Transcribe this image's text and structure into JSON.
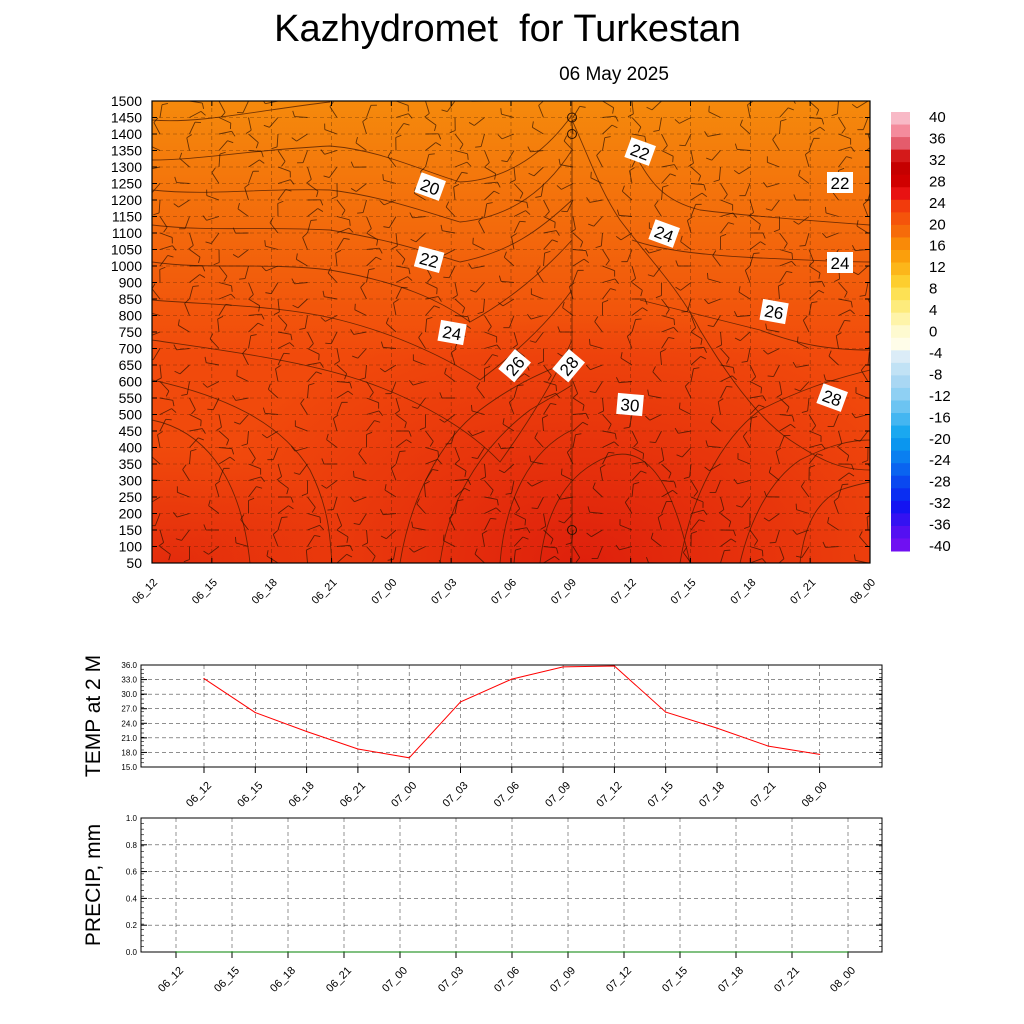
{
  "header": {
    "title": "Kazhydromet  for Turkestan",
    "date": "06 May 2025"
  },
  "colors": {
    "warm_top": "#f58a0c",
    "warm_mid": "#f14a0c",
    "warm_hot": "#d8120c",
    "temp_line": "#ff0000",
    "precip_line": "#008000"
  },
  "chart_data": [
    {
      "type": "heatmap",
      "title": "",
      "xlabel": "",
      "ylabel": "",
      "x_ticks": [
        "06_12",
        "06_15",
        "06_18",
        "06_21",
        "07_00",
        "07_03",
        "07_06",
        "07_09",
        "07_12",
        "07_15",
        "07_18",
        "07_21",
        "08_00"
      ],
      "y_ticks": [
        50,
        100,
        150,
        200,
        250,
        300,
        350,
        400,
        450,
        500,
        550,
        600,
        650,
        700,
        750,
        800,
        850,
        900,
        1000,
        1050,
        1100,
        1150,
        1200,
        1250,
        1300,
        1350,
        1400,
        1450,
        1500
      ],
      "colorbar": {
        "labels": [
          40,
          36,
          32,
          28,
          24,
          20,
          16,
          12,
          8,
          4,
          0,
          -4,
          -8,
          -12,
          -16,
          -20,
          -24,
          -28,
          -32,
          -36,
          -40
        ],
        "colors": [
          "#f8b9c6",
          "#f48b9c",
          "#e45c6c",
          "#d41a1a",
          "#c50000",
          "#d00000",
          "#e81212",
          "#f23b0c",
          "#f5540b",
          "#f66b0a",
          "#f98a08",
          "#fb9f0c",
          "#fcb61a",
          "#fdce2e",
          "#fde154",
          "#fdeb7c",
          "#fef4a9",
          "#fefad0",
          "#fffde9",
          "#dbecf7",
          "#c1e2f5",
          "#a9d7f3",
          "#8fd0f3",
          "#6cc4f2",
          "#44b6f1",
          "#1aa8f0",
          "#0a96ef",
          "#0a7ff0",
          "#0a64f0",
          "#0a48f0",
          "#0a2ef2",
          "#1414f2",
          "#3412f2",
          "#5410f2",
          "#7010f2"
        ]
      },
      "contour_labels": [
        "20",
        "22",
        "22",
        "22",
        "24",
        "24",
        "24",
        "26",
        "26",
        "28",
        "28",
        "30"
      ],
      "marked_levels": [
        "1450",
        "1400",
        "150"
      ]
    },
    {
      "type": "line",
      "title": "",
      "ylabel": "TEMP at 2 M",
      "x": [
        "06_12",
        "06_15",
        "06_18",
        "06_21",
        "07_00",
        "07_03",
        "07_06",
        "07_09",
        "07_12",
        "07_15",
        "07_18",
        "07_21",
        "08_00"
      ],
      "y_ticks": [
        "15.0",
        "18.0",
        "21.0",
        "24.0",
        "27.0",
        "30.0",
        "33.0",
        "36.0"
      ],
      "ylim": [
        15,
        36
      ],
      "grid": true,
      "series": [
        {
          "values": [
            33.2,
            26.2,
            22.3,
            18.7,
            16.9,
            28.4,
            33.1,
            35.6,
            35.8,
            26.3,
            23.0,
            19.3,
            17.6
          ]
        }
      ]
    },
    {
      "type": "line",
      "title": "",
      "ylabel": "PRECIP, mm",
      "x": [
        "06_12",
        "06_15",
        "06_18",
        "06_21",
        "07_00",
        "07_03",
        "07_06",
        "07_09",
        "07_12",
        "07_15",
        "07_18",
        "07_21",
        "08_00"
      ],
      "y_ticks": [
        "0.0",
        "0.2",
        "0.4",
        "0.6",
        "0.8",
        "1.0"
      ],
      "ylim": [
        0,
        1
      ],
      "grid": true,
      "series": [
        {
          "values": [
            0,
            0,
            0,
            0,
            0,
            0,
            0,
            0,
            0,
            0,
            0,
            0,
            0
          ]
        }
      ]
    }
  ]
}
